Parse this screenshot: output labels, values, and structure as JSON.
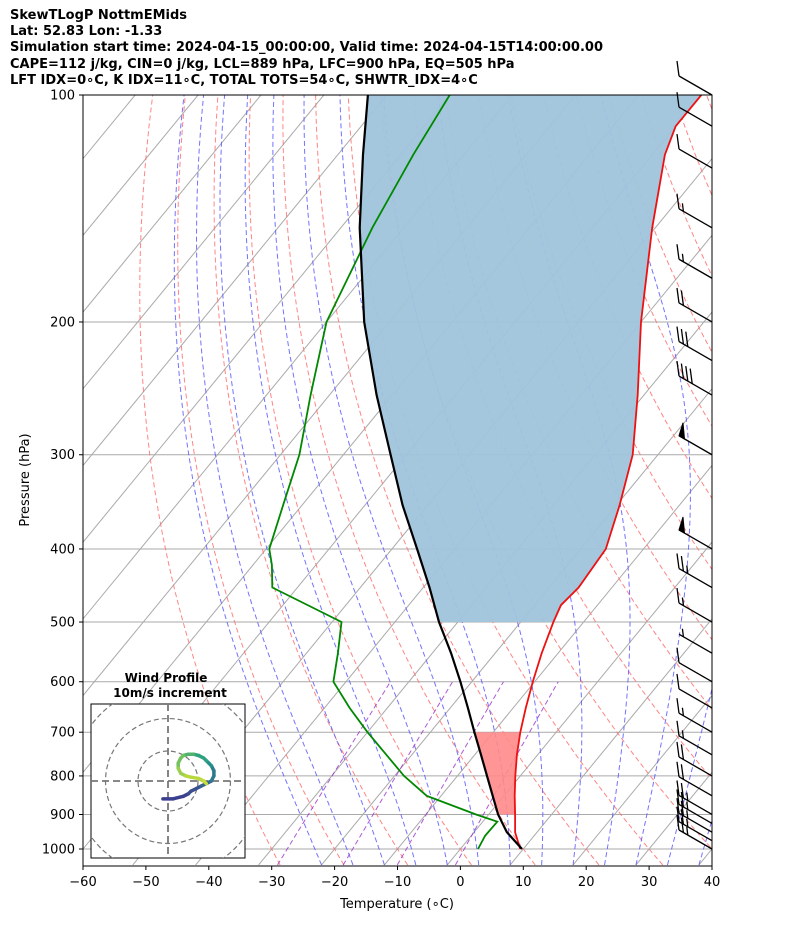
{
  "header": {
    "line1": "SkewTLogP NottmEMids",
    "line2": "Lat: 52.83   Lon: -1.33",
    "line3": "Simulation start time: 2024-04-15_00:00:00, Valid time: 2024-04-15T14:00:00.00",
    "line4": "CAPE=112 j/kg, CIN=0 j/kg, LCL=889 hPa, LFC=900 hPa, EQ=505 hPa",
    "line5": "LFT IDX=0∘C, K IDX=11∘C, TOTAL TOTS=54∘C, SHWTR_IDX=4∘C"
  },
  "chart_data": {
    "type": "line",
    "plot": "skew-T log-P",
    "xlabel": "Temperature (∘C)",
    "ylabel": "Pressure (hPa)",
    "xlim": [
      -60,
      40
    ],
    "ylim": [
      1050,
      100
    ],
    "x_ticks": [
      -60,
      -50,
      -40,
      -30,
      -20,
      -10,
      0,
      10,
      20,
      30,
      40
    ],
    "y_ticks": [
      1000,
      900,
      800,
      700,
      600,
      500,
      400,
      300,
      200,
      100
    ],
    "series": [
      {
        "key": "temperature",
        "color": "#ee1111",
        "points": [
          [
            1000,
            9.5
          ],
          [
            950,
            6.5
          ],
          [
            900,
            4.2
          ],
          [
            850,
            1.7
          ],
          [
            800,
            -0.8
          ],
          [
            750,
            -3.3
          ],
          [
            700,
            -5.7
          ],
          [
            650,
            -8.0
          ],
          [
            600,
            -10.3
          ],
          [
            550,
            -12.6
          ],
          [
            500,
            -14.8
          ],
          [
            475,
            -15.8
          ],
          [
            450,
            -15.3
          ],
          [
            400,
            -16.0
          ],
          [
            350,
            -19.5
          ],
          [
            300,
            -24.0
          ],
          [
            250,
            -31.0
          ],
          [
            200,
            -40.0
          ],
          [
            150,
            -50.5
          ],
          [
            120,
            -58.0
          ],
          [
            110,
            -60.0
          ],
          [
            100,
            -60.0
          ]
        ]
      },
      {
        "key": "dewpoint",
        "color": "#008800",
        "points": [
          [
            1000,
            2.8
          ],
          [
            960,
            2.2
          ],
          [
            920,
            2.3
          ],
          [
            900,
            -2.0
          ],
          [
            850,
            -12.3
          ],
          [
            800,
            -18.5
          ],
          [
            700,
            -30.0
          ],
          [
            650,
            -36.0
          ],
          [
            600,
            -42.0
          ],
          [
            550,
            -45.0
          ],
          [
            500,
            -48.5
          ],
          [
            450,
            -64.0
          ],
          [
            420,
            -67.0
          ],
          [
            400,
            -69.5
          ],
          [
            350,
            -73.0
          ],
          [
            300,
            -77.0
          ],
          [
            250,
            -83.0
          ],
          [
            200,
            -90.0
          ],
          [
            150,
            -95.0
          ],
          [
            120,
            -98.0
          ],
          [
            100,
            -100.0
          ]
        ]
      },
      {
        "key": "parcel",
        "color": "#000000",
        "points": [
          [
            1000,
            9.8
          ],
          [
            950,
            5.2
          ],
          [
            900,
            1.5
          ],
          [
            850,
            -1.8
          ],
          [
            800,
            -5.3
          ],
          [
            750,
            -9.0
          ],
          [
            700,
            -13.0
          ],
          [
            650,
            -17.2
          ],
          [
            600,
            -21.8
          ],
          [
            550,
            -27.0
          ],
          [
            500,
            -33.0
          ],
          [
            450,
            -39.0
          ],
          [
            400,
            -46.0
          ],
          [
            350,
            -54.0
          ],
          [
            300,
            -62.5
          ],
          [
            250,
            -72.5
          ],
          [
            200,
            -84.0
          ],
          [
            150,
            -97.0
          ],
          [
            120,
            -106.0
          ],
          [
            100,
            -113.0
          ]
        ]
      }
    ],
    "wind_barbs": [
      {
        "p": 1000,
        "speed_kt": 25
      },
      {
        "p": 975,
        "speed_kt": 25
      },
      {
        "p": 950,
        "speed_kt": 25
      },
      {
        "p": 925,
        "speed_kt": 25
      },
      {
        "p": 900,
        "speed_kt": 25
      },
      {
        "p": 850,
        "speed_kt": 20
      },
      {
        "p": 800,
        "speed_kt": 20
      },
      {
        "p": 750,
        "speed_kt": 15
      },
      {
        "p": 700,
        "speed_kt": 15
      },
      {
        "p": 650,
        "speed_kt": 10
      },
      {
        "p": 600,
        "speed_kt": 10
      },
      {
        "p": 550,
        "speed_kt": 5
      },
      {
        "p": 500,
        "speed_kt": 15
      },
      {
        "p": 450,
        "speed_kt": 25
      },
      {
        "p": 400,
        "speed_kt": 50
      },
      {
        "p": 300,
        "speed_kt": 50
      },
      {
        "p": 250,
        "speed_kt": 40
      },
      {
        "p": 225,
        "speed_kt": 30
      },
      {
        "p": 200,
        "speed_kt": 20
      },
      {
        "p": 175,
        "speed_kt": 15
      },
      {
        "p": 150,
        "speed_kt": 15
      },
      {
        "p": 125,
        "speed_kt": 10
      },
      {
        "p": 110,
        "speed_kt": 10
      },
      {
        "p": 100,
        "speed_kt": 10
      }
    ],
    "inset": {
      "title_line1": "Wind Profile",
      "title_line2": "10m/s increment",
      "hodograph": [
        [
          -2,
          -7
        ],
        [
          2,
          -7
        ],
        [
          6,
          -6
        ],
        [
          8,
          -5
        ],
        [
          9,
          -4
        ],
        [
          11,
          -3
        ],
        [
          13,
          -2
        ],
        [
          15,
          -1
        ],
        [
          17,
          0
        ],
        [
          18,
          2
        ],
        [
          18,
          4
        ],
        [
          17,
          6
        ],
        [
          16,
          7
        ],
        [
          15,
          8
        ],
        [
          14,
          9
        ],
        [
          12,
          10
        ],
        [
          10,
          10.5
        ],
        [
          8,
          10.5
        ],
        [
          6,
          10
        ],
        [
          5,
          9
        ],
        [
          4,
          7
        ],
        [
          4,
          5
        ],
        [
          5,
          3
        ],
        [
          7,
          2
        ],
        [
          9,
          1.5
        ],
        [
          12,
          1
        ],
        [
          14,
          0
        ],
        [
          15,
          -1
        ]
      ]
    },
    "colors": {
      "cape_fill": "#a0c4dc",
      "temperature": "#ee1111",
      "dewpoint": "#008800",
      "parcel": "#000000",
      "dry_adiabat": "#ff7070",
      "moist_adiabat": "#5b5bff",
      "mixing_ratio": "#9b30c8",
      "isotherm": "#aaaaaa"
    }
  }
}
